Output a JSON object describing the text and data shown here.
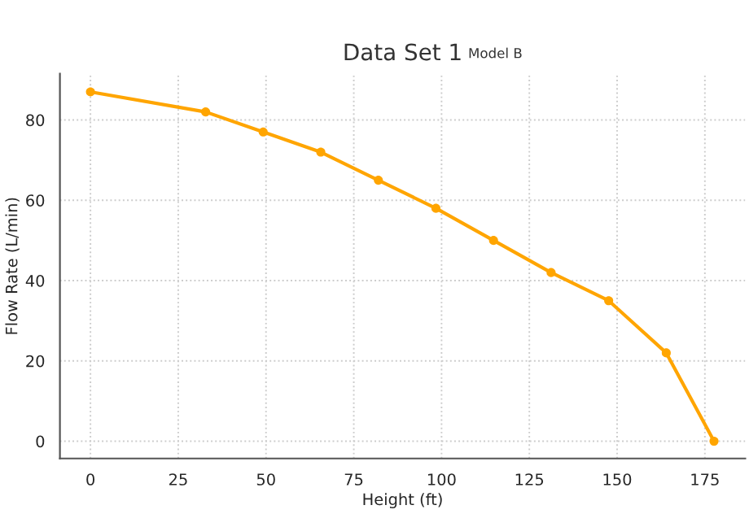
{
  "chart_data": {
    "type": "line",
    "title": "Data Set 1",
    "xlabel": "Height (ft)",
    "ylabel": "Flow Rate (L/min)",
    "annotations": [
      "Model B"
    ],
    "x": [
      0,
      32.8,
      49.2,
      65.6,
      82,
      98.4,
      114.8,
      131.2,
      147.6,
      164,
      177.6
    ],
    "series": [
      {
        "color": "#ffa500",
        "values": [
          87,
          82,
          77,
          72,
          65,
          58,
          50,
          42,
          35,
          22,
          0
        ]
      }
    ],
    "xlim": [
      -8.7,
      186.5
    ],
    "ylim": [
      -4.3,
      91.5
    ],
    "xticks": [
      0,
      25,
      50,
      75,
      100,
      125,
      150,
      175
    ],
    "yticks": [
      0,
      20,
      40,
      60,
      80
    ],
    "grid": true,
    "marker": "circle",
    "line_style": "solid"
  }
}
